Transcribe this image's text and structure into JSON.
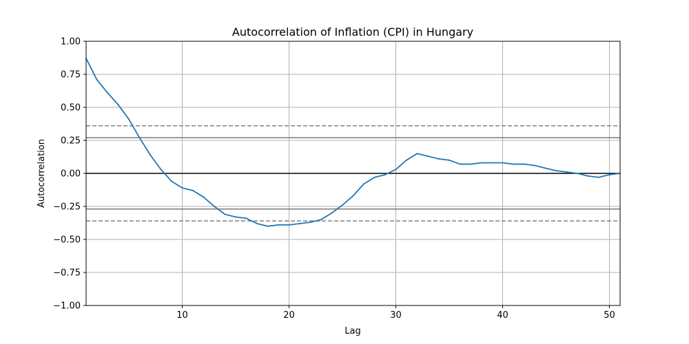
{
  "chart_data": {
    "type": "line",
    "title": "Autocorrelation of Inflation (CPI) in Hungary",
    "xlabel": "Lag",
    "ylabel": "Autocorrelation",
    "xlim": [
      1,
      51
    ],
    "ylim": [
      -1.0,
      1.0
    ],
    "grid": true,
    "legend": "none",
    "x_ticks": [
      10,
      20,
      30,
      40,
      50
    ],
    "x_tick_labels": [
      "10",
      "20",
      "30",
      "40",
      "50"
    ],
    "y_ticks": [
      -1.0,
      -0.75,
      -0.5,
      -0.25,
      0.0,
      0.25,
      0.5,
      0.75,
      1.0
    ],
    "y_tick_labels": [
      "−1.00",
      "−0.75",
      "−0.50",
      "−0.25",
      "0.00",
      "0.25",
      "0.50",
      "0.75",
      "1.00"
    ],
    "series": [
      {
        "color": "#1f77b4",
        "x": [
          1,
          2,
          3,
          4,
          5,
          6,
          7,
          8,
          9,
          10,
          11,
          12,
          13,
          14,
          15,
          16,
          17,
          18,
          19,
          20,
          21,
          22,
          23,
          24,
          25,
          26,
          27,
          28,
          29,
          30,
          31,
          32,
          33,
          34,
          35,
          36,
          37,
          38,
          39,
          40,
          41,
          42,
          43,
          44,
          45,
          46,
          47,
          48,
          49,
          50,
          51
        ],
        "values": [
          0.87,
          0.71,
          0.61,
          0.52,
          0.41,
          0.27,
          0.14,
          0.03,
          -0.06,
          -0.11,
          -0.13,
          -0.18,
          -0.25,
          -0.31,
          -0.33,
          -0.34,
          -0.38,
          -0.4,
          -0.39,
          -0.39,
          -0.38,
          -0.37,
          -0.35,
          -0.3,
          -0.24,
          -0.17,
          -0.08,
          -0.03,
          -0.01,
          0.03,
          0.1,
          0.15,
          0.13,
          0.11,
          0.1,
          0.07,
          0.07,
          0.08,
          0.08,
          0.08,
          0.07,
          0.07,
          0.06,
          0.04,
          0.02,
          0.01,
          0.0,
          -0.02,
          -0.03,
          -0.01,
          0.0
        ]
      }
    ],
    "reference_lines": {
      "zero": {
        "value": 0.0,
        "color": "#000000",
        "style": "solid"
      },
      "confidence_95": {
        "values": [
          0.27,
          -0.27
        ],
        "color": "#808080",
        "style": "solid"
      },
      "confidence_99": {
        "values": [
          0.36,
          -0.36
        ],
        "color": "#808080",
        "style": "dashed"
      }
    }
  }
}
